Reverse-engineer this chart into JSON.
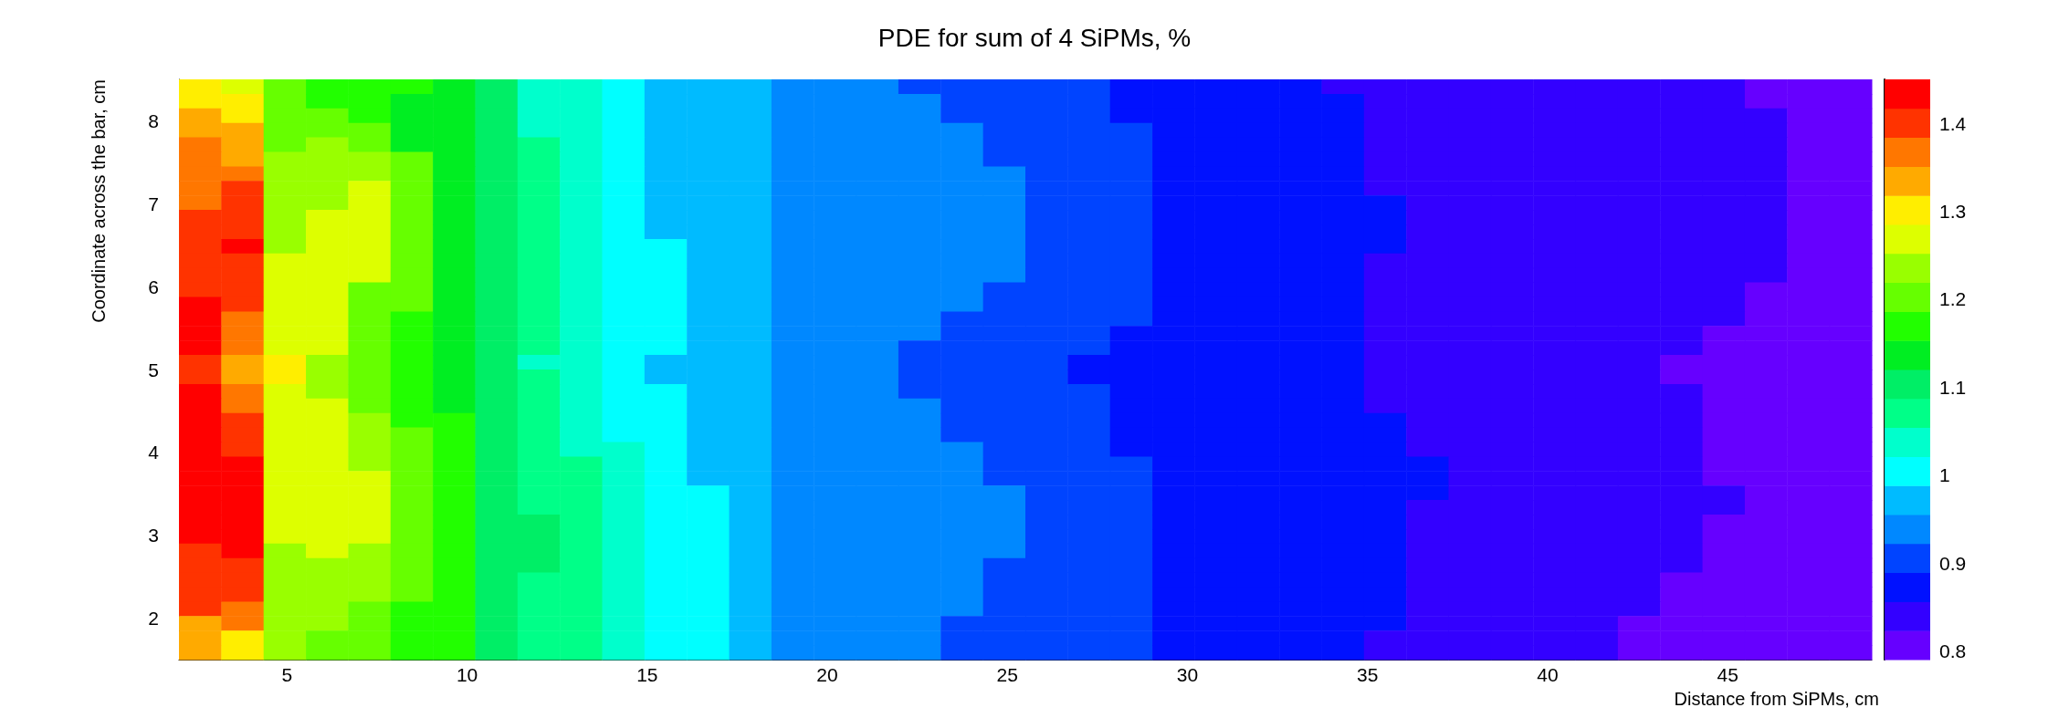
{
  "chart_data": {
    "type": "heatmap",
    "title": "PDE for sum of 4 SiPMs, %",
    "xlabel": "Distance from SiPMs, cm",
    "ylabel": "Coordinate across the bar, cm",
    "x": [
      2.59,
      3.76,
      4.94,
      6.11,
      7.29,
      8.46,
      9.64,
      10.81,
      11.99,
      13.16,
      14.34,
      15.51,
      16.69,
      17.86,
      19.04,
      20.21,
      21.39,
      22.56,
      23.74,
      24.91,
      26.09,
      27.26,
      28.44,
      29.61,
      30.79,
      31.96,
      33.14,
      34.31,
      35.49,
      36.66,
      37.84,
      39.01,
      40.19,
      41.36,
      42.54,
      43.71,
      44.89,
      46.06,
      47.24,
      48.41
    ],
    "y": [
      8.41,
      8.24,
      8.06,
      7.89,
      7.71,
      7.54,
      7.36,
      7.19,
      7.01,
      6.84,
      6.66,
      6.49,
      6.31,
      6.14,
      5.96,
      5.79,
      5.61,
      5.44,
      5.26,
      5.09,
      4.91,
      4.74,
      4.56,
      4.39,
      4.21,
      4.04,
      3.86,
      3.69,
      3.51,
      3.34,
      3.16,
      2.99,
      2.81,
      2.64,
      2.46,
      2.29,
      2.11,
      1.94,
      1.76,
      1.59
    ],
    "xlim": [
      2,
      49
    ],
    "xticks": [
      5,
      10,
      15,
      20,
      25,
      30,
      35,
      40,
      45
    ],
    "ylim": [
      1.5,
      8.5
    ],
    "yticks": [
      2,
      3,
      4,
      5,
      6,
      7,
      8
    ],
    "clim": [
      0.79,
      1.45
    ],
    "cticks": [
      0.8,
      0.9,
      1,
      1.1,
      1.2,
      1.3,
      1.4
    ],
    "colors": [
      "#6600ff",
      "#3300ff",
      "#0011ff",
      "#0044ff",
      "#0088ff",
      "#00bbff",
      "#00ffff",
      "#00ffcc",
      "#00ff88",
      "#00ee66",
      "#00ee22",
      "#22ff00",
      "#66ff00",
      "#99ff00",
      "#ddff00",
      "#ffee00",
      "#ffaa00",
      "#ff7700",
      "#ff3300",
      "#ff0000"
    ],
    "cells": [
      [
        1.3,
        1.26,
        1.2,
        1.17,
        1.17,
        1.17,
        1.13,
        1.1,
        1.03,
        1.03,
        1.0,
        0.97,
        0.97,
        0.97,
        0.94,
        0.94,
        0.94,
        0.9,
        0.9,
        0.9,
        0.9,
        0.9,
        0.87,
        0.87,
        0.87,
        0.87,
        0.87,
        0.84,
        0.84,
        0.84,
        0.84,
        0.84,
        0.84,
        0.84,
        0.84,
        0.84,
        0.84,
        0.81,
        0.81,
        0.81
      ],
      [
        1.3,
        1.3,
        1.2,
        1.17,
        1.17,
        1.13,
        1.13,
        1.1,
        1.03,
        1.03,
        1.0,
        0.97,
        0.97,
        0.97,
        0.94,
        0.94,
        0.94,
        0.94,
        0.9,
        0.9,
        0.9,
        0.9,
        0.87,
        0.87,
        0.87,
        0.87,
        0.87,
        0.87,
        0.84,
        0.84,
        0.84,
        0.84,
        0.84,
        0.84,
        0.84,
        0.84,
        0.84,
        0.81,
        0.81,
        0.81
      ],
      [
        1.33,
        1.3,
        1.2,
        1.2,
        1.17,
        1.13,
        1.13,
        1.1,
        1.03,
        1.03,
        1.0,
        0.97,
        0.97,
        0.97,
        0.94,
        0.94,
        0.94,
        0.94,
        0.9,
        0.9,
        0.9,
        0.9,
        0.87,
        0.87,
        0.87,
        0.87,
        0.87,
        0.87,
        0.84,
        0.84,
        0.84,
        0.84,
        0.84,
        0.84,
        0.84,
        0.84,
        0.84,
        0.84,
        0.81,
        0.81
      ],
      [
        1.33,
        1.33,
        1.2,
        1.2,
        1.2,
        1.13,
        1.13,
        1.1,
        1.03,
        1.03,
        1.0,
        0.97,
        0.97,
        0.97,
        0.94,
        0.94,
        0.94,
        0.94,
        0.94,
        0.9,
        0.9,
        0.9,
        0.9,
        0.87,
        0.87,
        0.87,
        0.87,
        0.87,
        0.84,
        0.84,
        0.84,
        0.84,
        0.84,
        0.84,
        0.84,
        0.84,
        0.84,
        0.84,
        0.81,
        0.81
      ],
      [
        1.36,
        1.33,
        1.2,
        1.23,
        1.2,
        1.13,
        1.13,
        1.1,
        1.07,
        1.03,
        1.0,
        0.97,
        0.97,
        0.97,
        0.94,
        0.94,
        0.94,
        0.94,
        0.94,
        0.9,
        0.9,
        0.9,
        0.9,
        0.87,
        0.87,
        0.87,
        0.87,
        0.87,
        0.84,
        0.84,
        0.84,
        0.84,
        0.84,
        0.84,
        0.84,
        0.84,
        0.84,
        0.84,
        0.81,
        0.81
      ],
      [
        1.36,
        1.33,
        1.23,
        1.23,
        1.23,
        1.2,
        1.13,
        1.1,
        1.07,
        1.03,
        1.0,
        0.97,
        0.97,
        0.97,
        0.94,
        0.94,
        0.94,
        0.94,
        0.94,
        0.9,
        0.9,
        0.9,
        0.9,
        0.87,
        0.87,
        0.87,
        0.87,
        0.87,
        0.84,
        0.84,
        0.84,
        0.84,
        0.84,
        0.84,
        0.84,
        0.84,
        0.84,
        0.84,
        0.81,
        0.81
      ],
      [
        1.36,
        1.36,
        1.23,
        1.23,
        1.23,
        1.2,
        1.13,
        1.1,
        1.07,
        1.03,
        1.0,
        0.97,
        0.97,
        0.97,
        0.94,
        0.94,
        0.94,
        0.94,
        0.94,
        0.94,
        0.9,
        0.9,
        0.9,
        0.87,
        0.87,
        0.87,
        0.87,
        0.87,
        0.84,
        0.84,
        0.84,
        0.84,
        0.84,
        0.84,
        0.84,
        0.84,
        0.84,
        0.84,
        0.81,
        0.81
      ],
      [
        1.36,
        1.39,
        1.23,
        1.23,
        1.26,
        1.2,
        1.13,
        1.1,
        1.07,
        1.03,
        1.0,
        0.97,
        0.97,
        0.97,
        0.94,
        0.94,
        0.94,
        0.94,
        0.94,
        0.94,
        0.9,
        0.9,
        0.9,
        0.87,
        0.87,
        0.87,
        0.87,
        0.87,
        0.84,
        0.84,
        0.84,
        0.84,
        0.84,
        0.84,
        0.84,
        0.84,
        0.84,
        0.84,
        0.81,
        0.81
      ],
      [
        1.36,
        1.39,
        1.23,
        1.23,
        1.26,
        1.2,
        1.13,
        1.1,
        1.07,
        1.03,
        1.0,
        0.97,
        0.97,
        0.97,
        0.94,
        0.94,
        0.94,
        0.94,
        0.94,
        0.94,
        0.9,
        0.9,
        0.9,
        0.87,
        0.87,
        0.87,
        0.87,
        0.87,
        0.87,
        0.84,
        0.84,
        0.84,
        0.84,
        0.84,
        0.84,
        0.84,
        0.84,
        0.84,
        0.81,
        0.81
      ],
      [
        1.39,
        1.39,
        1.23,
        1.26,
        1.26,
        1.2,
        1.13,
        1.1,
        1.07,
        1.03,
        1.0,
        0.97,
        0.97,
        0.97,
        0.94,
        0.94,
        0.94,
        0.94,
        0.94,
        0.94,
        0.9,
        0.9,
        0.9,
        0.87,
        0.87,
        0.87,
        0.87,
        0.87,
        0.87,
        0.84,
        0.84,
        0.84,
        0.84,
        0.84,
        0.84,
        0.84,
        0.84,
        0.84,
        0.81,
        0.81
      ],
      [
        1.39,
        1.39,
        1.23,
        1.26,
        1.26,
        1.2,
        1.13,
        1.1,
        1.07,
        1.03,
        1.0,
        0.97,
        0.97,
        0.97,
        0.94,
        0.94,
        0.94,
        0.94,
        0.94,
        0.94,
        0.9,
        0.9,
        0.9,
        0.87,
        0.87,
        0.87,
        0.87,
        0.87,
        0.87,
        0.84,
        0.84,
        0.84,
        0.84,
        0.84,
        0.84,
        0.84,
        0.84,
        0.84,
        0.81,
        0.81
      ],
      [
        1.39,
        1.43,
        1.23,
        1.26,
        1.26,
        1.2,
        1.13,
        1.1,
        1.07,
        1.03,
        1.0,
        1.0,
        0.97,
        0.97,
        0.94,
        0.94,
        0.94,
        0.94,
        0.94,
        0.94,
        0.9,
        0.9,
        0.9,
        0.87,
        0.87,
        0.87,
        0.87,
        0.87,
        0.87,
        0.84,
        0.84,
        0.84,
        0.84,
        0.84,
        0.84,
        0.84,
        0.84,
        0.84,
        0.81,
        0.81
      ],
      [
        1.39,
        1.39,
        1.26,
        1.26,
        1.26,
        1.2,
        1.13,
        1.1,
        1.07,
        1.03,
        1.0,
        1.0,
        0.97,
        0.97,
        0.94,
        0.94,
        0.94,
        0.94,
        0.94,
        0.94,
        0.9,
        0.9,
        0.9,
        0.87,
        0.87,
        0.87,
        0.87,
        0.87,
        0.84,
        0.84,
        0.84,
        0.84,
        0.84,
        0.84,
        0.84,
        0.84,
        0.84,
        0.84,
        0.81,
        0.81
      ],
      [
        1.39,
        1.39,
        1.26,
        1.26,
        1.26,
        1.2,
        1.13,
        1.1,
        1.07,
        1.03,
        1.0,
        1.0,
        0.97,
        0.97,
        0.94,
        0.94,
        0.94,
        0.94,
        0.94,
        0.94,
        0.9,
        0.9,
        0.9,
        0.87,
        0.87,
        0.87,
        0.87,
        0.87,
        0.84,
        0.84,
        0.84,
        0.84,
        0.84,
        0.84,
        0.84,
        0.84,
        0.84,
        0.84,
        0.81,
        0.81
      ],
      [
        1.39,
        1.39,
        1.26,
        1.26,
        1.2,
        1.2,
        1.13,
        1.1,
        1.07,
        1.03,
        1.0,
        1.0,
        0.97,
        0.97,
        0.94,
        0.94,
        0.94,
        0.94,
        0.94,
        0.9,
        0.9,
        0.9,
        0.9,
        0.87,
        0.87,
        0.87,
        0.87,
        0.87,
        0.84,
        0.84,
        0.84,
        0.84,
        0.84,
        0.84,
        0.84,
        0.84,
        0.84,
        0.81,
        0.81,
        0.81
      ],
      [
        1.43,
        1.39,
        1.26,
        1.26,
        1.2,
        1.2,
        1.13,
        1.1,
        1.07,
        1.03,
        1.0,
        1.0,
        0.97,
        0.97,
        0.94,
        0.94,
        0.94,
        0.94,
        0.94,
        0.9,
        0.9,
        0.9,
        0.9,
        0.87,
        0.87,
        0.87,
        0.87,
        0.87,
        0.84,
        0.84,
        0.84,
        0.84,
        0.84,
        0.84,
        0.84,
        0.84,
        0.84,
        0.81,
        0.81,
        0.81
      ],
      [
        1.43,
        1.36,
        1.26,
        1.26,
        1.2,
        1.17,
        1.13,
        1.1,
        1.07,
        1.03,
        1.0,
        1.0,
        0.97,
        0.97,
        0.94,
        0.94,
        0.94,
        0.94,
        0.9,
        0.9,
        0.9,
        0.9,
        0.9,
        0.87,
        0.87,
        0.87,
        0.87,
        0.87,
        0.84,
        0.84,
        0.84,
        0.84,
        0.84,
        0.84,
        0.84,
        0.84,
        0.84,
        0.81,
        0.81,
        0.81
      ],
      [
        1.43,
        1.36,
        1.26,
        1.26,
        1.2,
        1.17,
        1.13,
        1.1,
        1.07,
        1.03,
        1.0,
        1.0,
        0.97,
        0.97,
        0.94,
        0.94,
        0.94,
        0.94,
        0.9,
        0.9,
        0.9,
        0.9,
        0.87,
        0.87,
        0.87,
        0.87,
        0.87,
        0.87,
        0.84,
        0.84,
        0.84,
        0.84,
        0.84,
        0.84,
        0.84,
        0.84,
        0.81,
        0.81,
        0.81,
        0.81
      ],
      [
        1.43,
        1.36,
        1.26,
        1.26,
        1.2,
        1.17,
        1.13,
        1.1,
        1.07,
        1.03,
        1.0,
        1.0,
        0.97,
        0.97,
        0.94,
        0.94,
        0.94,
        0.9,
        0.9,
        0.9,
        0.9,
        0.9,
        0.87,
        0.87,
        0.87,
        0.87,
        0.87,
        0.87,
        0.84,
        0.84,
        0.84,
        0.84,
        0.84,
        0.84,
        0.84,
        0.84,
        0.81,
        0.81,
        0.81,
        0.81
      ],
      [
        1.39,
        1.33,
        1.3,
        1.23,
        1.2,
        1.17,
        1.13,
        1.1,
        1.03,
        1.03,
        1.0,
        0.97,
        0.97,
        0.97,
        0.94,
        0.94,
        0.94,
        0.9,
        0.9,
        0.9,
        0.9,
        0.87,
        0.87,
        0.87,
        0.87,
        0.87,
        0.87,
        0.87,
        0.84,
        0.84,
        0.84,
        0.84,
        0.84,
        0.84,
        0.84,
        0.81,
        0.81,
        0.81,
        0.81,
        0.81
      ],
      [
        1.39,
        1.33,
        1.3,
        1.23,
        1.2,
        1.17,
        1.13,
        1.1,
        1.07,
        1.03,
        1.0,
        0.97,
        0.97,
        0.97,
        0.94,
        0.94,
        0.94,
        0.9,
        0.9,
        0.9,
        0.9,
        0.87,
        0.87,
        0.87,
        0.87,
        0.87,
        0.87,
        0.87,
        0.84,
        0.84,
        0.84,
        0.84,
        0.84,
        0.84,
        0.84,
        0.81,
        0.81,
        0.81,
        0.81,
        0.81
      ],
      [
        1.43,
        1.36,
        1.26,
        1.23,
        1.2,
        1.17,
        1.13,
        1.1,
        1.07,
        1.03,
        1.0,
        1.0,
        0.97,
        0.97,
        0.94,
        0.94,
        0.94,
        0.9,
        0.9,
        0.9,
        0.9,
        0.9,
        0.87,
        0.87,
        0.87,
        0.87,
        0.87,
        0.87,
        0.84,
        0.84,
        0.84,
        0.84,
        0.84,
        0.84,
        0.84,
        0.84,
        0.81,
        0.81,
        0.81,
        0.81
      ],
      [
        1.43,
        1.36,
        1.26,
        1.26,
        1.2,
        1.17,
        1.13,
        1.1,
        1.07,
        1.03,
        1.0,
        1.0,
        0.97,
        0.97,
        0.94,
        0.94,
        0.94,
        0.94,
        0.9,
        0.9,
        0.9,
        0.9,
        0.87,
        0.87,
        0.87,
        0.87,
        0.87,
        0.87,
        0.84,
        0.84,
        0.84,
        0.84,
        0.84,
        0.84,
        0.84,
        0.84,
        0.81,
        0.81,
        0.81,
        0.81
      ],
      [
        1.43,
        1.39,
        1.26,
        1.26,
        1.23,
        1.17,
        1.17,
        1.1,
        1.07,
        1.03,
        1.0,
        1.0,
        0.97,
        0.97,
        0.94,
        0.94,
        0.94,
        0.94,
        0.9,
        0.9,
        0.9,
        0.9,
        0.87,
        0.87,
        0.87,
        0.87,
        0.87,
        0.87,
        0.87,
        0.84,
        0.84,
        0.84,
        0.84,
        0.84,
        0.84,
        0.84,
        0.81,
        0.81,
        0.81,
        0.81
      ],
      [
        1.43,
        1.39,
        1.26,
        1.26,
        1.23,
        1.2,
        1.17,
        1.1,
        1.07,
        1.03,
        1.0,
        1.0,
        0.97,
        0.97,
        0.94,
        0.94,
        0.94,
        0.94,
        0.9,
        0.9,
        0.9,
        0.9,
        0.87,
        0.87,
        0.87,
        0.87,
        0.87,
        0.87,
        0.87,
        0.84,
        0.84,
        0.84,
        0.84,
        0.84,
        0.84,
        0.84,
        0.81,
        0.81,
        0.81,
        0.81
      ],
      [
        1.43,
        1.39,
        1.26,
        1.26,
        1.23,
        1.2,
        1.17,
        1.1,
        1.07,
        1.03,
        1.03,
        1.0,
        0.97,
        0.97,
        0.94,
        0.94,
        0.94,
        0.94,
        0.94,
        0.9,
        0.9,
        0.9,
        0.87,
        0.87,
        0.87,
        0.87,
        0.87,
        0.87,
        0.87,
        0.84,
        0.84,
        0.84,
        0.84,
        0.84,
        0.84,
        0.84,
        0.81,
        0.81,
        0.81,
        0.81
      ],
      [
        1.43,
        1.43,
        1.26,
        1.26,
        1.23,
        1.2,
        1.17,
        1.1,
        1.07,
        1.07,
        1.03,
        1.0,
        0.97,
        0.97,
        0.94,
        0.94,
        0.94,
        0.94,
        0.94,
        0.9,
        0.9,
        0.9,
        0.9,
        0.87,
        0.87,
        0.87,
        0.87,
        0.87,
        0.87,
        0.87,
        0.84,
        0.84,
        0.84,
        0.84,
        0.84,
        0.84,
        0.81,
        0.81,
        0.81,
        0.81
      ],
      [
        1.43,
        1.43,
        1.26,
        1.26,
        1.26,
        1.2,
        1.17,
        1.1,
        1.07,
        1.07,
        1.03,
        1.0,
        0.97,
        0.97,
        0.94,
        0.94,
        0.94,
        0.94,
        0.94,
        0.9,
        0.9,
        0.9,
        0.9,
        0.87,
        0.87,
        0.87,
        0.87,
        0.87,
        0.87,
        0.87,
        0.84,
        0.84,
        0.84,
        0.84,
        0.84,
        0.84,
        0.81,
        0.81,
        0.81,
        0.81
      ],
      [
        1.43,
        1.43,
        1.26,
        1.26,
        1.26,
        1.2,
        1.17,
        1.1,
        1.07,
        1.07,
        1.03,
        1.0,
        1.0,
        0.97,
        0.94,
        0.94,
        0.94,
        0.94,
        0.94,
        0.94,
        0.9,
        0.9,
        0.9,
        0.87,
        0.87,
        0.87,
        0.87,
        0.87,
        0.87,
        0.87,
        0.84,
        0.84,
        0.84,
        0.84,
        0.84,
        0.84,
        0.84,
        0.81,
        0.81,
        0.81
      ],
      [
        1.43,
        1.43,
        1.26,
        1.26,
        1.26,
        1.2,
        1.17,
        1.1,
        1.07,
        1.07,
        1.03,
        1.0,
        1.0,
        0.97,
        0.94,
        0.94,
        0.94,
        0.94,
        0.94,
        0.94,
        0.9,
        0.9,
        0.9,
        0.87,
        0.87,
        0.87,
        0.87,
        0.87,
        0.87,
        0.84,
        0.84,
        0.84,
        0.84,
        0.84,
        0.84,
        0.84,
        0.84,
        0.81,
        0.81,
        0.81
      ],
      [
        1.43,
        1.43,
        1.26,
        1.26,
        1.26,
        1.2,
        1.17,
        1.1,
        1.1,
        1.07,
        1.03,
        1.0,
        1.0,
        0.97,
        0.94,
        0.94,
        0.94,
        0.94,
        0.94,
        0.94,
        0.9,
        0.9,
        0.9,
        0.87,
        0.87,
        0.87,
        0.87,
        0.87,
        0.87,
        0.84,
        0.84,
        0.84,
        0.84,
        0.84,
        0.84,
        0.84,
        0.81,
        0.81,
        0.81,
        0.81
      ],
      [
        1.43,
        1.43,
        1.26,
        1.26,
        1.26,
        1.2,
        1.17,
        1.1,
        1.1,
        1.07,
        1.03,
        1.0,
        1.0,
        0.97,
        0.94,
        0.94,
        0.94,
        0.94,
        0.94,
        0.94,
        0.9,
        0.9,
        0.9,
        0.87,
        0.87,
        0.87,
        0.87,
        0.87,
        0.87,
        0.84,
        0.84,
        0.84,
        0.84,
        0.84,
        0.84,
        0.84,
        0.81,
        0.81,
        0.81,
        0.81
      ],
      [
        1.39,
        1.43,
        1.23,
        1.26,
        1.23,
        1.2,
        1.17,
        1.1,
        1.1,
        1.07,
        1.03,
        1.0,
        1.0,
        0.97,
        0.94,
        0.94,
        0.94,
        0.94,
        0.94,
        0.94,
        0.9,
        0.9,
        0.9,
        0.87,
        0.87,
        0.87,
        0.87,
        0.87,
        0.87,
        0.84,
        0.84,
        0.84,
        0.84,
        0.84,
        0.84,
        0.84,
        0.81,
        0.81,
        0.81,
        0.81
      ],
      [
        1.39,
        1.39,
        1.23,
        1.23,
        1.23,
        1.2,
        1.17,
        1.1,
        1.1,
        1.07,
        1.03,
        1.0,
        1.0,
        0.97,
        0.94,
        0.94,
        0.94,
        0.94,
        0.94,
        0.9,
        0.9,
        0.9,
        0.9,
        0.87,
        0.87,
        0.87,
        0.87,
        0.87,
        0.87,
        0.84,
        0.84,
        0.84,
        0.84,
        0.84,
        0.84,
        0.84,
        0.81,
        0.81,
        0.81,
        0.81
      ],
      [
        1.39,
        1.39,
        1.23,
        1.23,
        1.23,
        1.2,
        1.17,
        1.1,
        1.07,
        1.07,
        1.03,
        1.0,
        1.0,
        0.97,
        0.94,
        0.94,
        0.94,
        0.94,
        0.94,
        0.9,
        0.9,
        0.9,
        0.9,
        0.87,
        0.87,
        0.87,
        0.87,
        0.87,
        0.87,
        0.84,
        0.84,
        0.84,
        0.84,
        0.84,
        0.84,
        0.81,
        0.81,
        0.81,
        0.81,
        0.81
      ],
      [
        1.39,
        1.39,
        1.23,
        1.23,
        1.23,
        1.2,
        1.17,
        1.1,
        1.07,
        1.07,
        1.03,
        1.0,
        1.0,
        0.97,
        0.94,
        0.94,
        0.94,
        0.94,
        0.94,
        0.9,
        0.9,
        0.9,
        0.9,
        0.87,
        0.87,
        0.87,
        0.87,
        0.87,
        0.87,
        0.84,
        0.84,
        0.84,
        0.84,
        0.84,
        0.84,
        0.81,
        0.81,
        0.81,
        0.81,
        0.81
      ],
      [
        1.39,
        1.36,
        1.23,
        1.23,
        1.2,
        1.17,
        1.17,
        1.1,
        1.07,
        1.07,
        1.03,
        1.0,
        1.0,
        0.97,
        0.94,
        0.94,
        0.94,
        0.94,
        0.94,
        0.9,
        0.9,
        0.9,
        0.9,
        0.87,
        0.87,
        0.87,
        0.87,
        0.87,
        0.87,
        0.84,
        0.84,
        0.84,
        0.84,
        0.84,
        0.84,
        0.81,
        0.81,
        0.81,
        0.81,
        0.81
      ],
      [
        1.33,
        1.36,
        1.23,
        1.23,
        1.2,
        1.17,
        1.17,
        1.1,
        1.07,
        1.07,
        1.03,
        1.0,
        1.0,
        0.97,
        0.94,
        0.94,
        0.94,
        0.94,
        0.9,
        0.9,
        0.9,
        0.9,
        0.9,
        0.87,
        0.87,
        0.87,
        0.87,
        0.87,
        0.87,
        0.84,
        0.84,
        0.84,
        0.84,
        0.84,
        0.81,
        0.81,
        0.81,
        0.81,
        0.81,
        0.81
      ],
      [
        1.33,
        1.3,
        1.23,
        1.2,
        1.2,
        1.17,
        1.17,
        1.1,
        1.07,
        1.07,
        1.03,
        1.0,
        1.0,
        0.97,
        0.94,
        0.94,
        0.94,
        0.94,
        0.9,
        0.9,
        0.9,
        0.9,
        0.9,
        0.87,
        0.87,
        0.87,
        0.87,
        0.87,
        0.84,
        0.84,
        0.84,
        0.84,
        0.84,
        0.84,
        0.81,
        0.81,
        0.81,
        0.81,
        0.81,
        0.81
      ],
      [
        1.33,
        1.3,
        1.23,
        1.2,
        1.2,
        1.17,
        1.17,
        1.1,
        1.07,
        1.07,
        1.03,
        1.0,
        1.0,
        0.97,
        0.94,
        0.94,
        0.94,
        0.94,
        0.9,
        0.9,
        0.9,
        0.9,
        0.9,
        0.87,
        0.87,
        0.87,
        0.87,
        0.87,
        0.84,
        0.84,
        0.84,
        0.84,
        0.84,
        0.84,
        0.81,
        0.81,
        0.81,
        0.81,
        0.81,
        0.81
      ]
    ]
  }
}
